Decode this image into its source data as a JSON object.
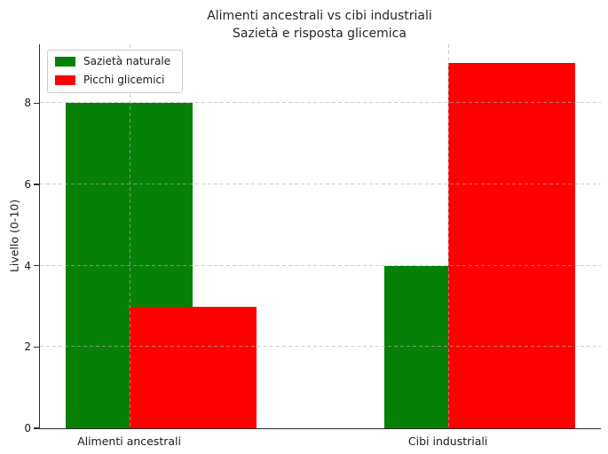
{
  "chart_data": {
    "type": "bar",
    "title": "Alimenti ancestrali vs cibi industriali",
    "subtitle": "Sazietà e risposta glicemica",
    "ylabel": "Livello (0-10)",
    "categories": [
      "Alimenti ancestrali",
      "Cibi industriali"
    ],
    "series": [
      {
        "name": "Sazietà naturale",
        "color": "#068006",
        "values": [
          8,
          4
        ]
      },
      {
        "name": "Picchi glicemici",
        "color": "#fe0000",
        "values": [
          3,
          9
        ]
      }
    ],
    "ylim": [
      0,
      9.45
    ],
    "yticks": [
      0,
      2,
      4,
      6,
      8
    ],
    "grid": "dashed",
    "grid_above_bars": true,
    "legend_position": "upper-left",
    "bar_width": 0.4,
    "series_offset": 0.2,
    "xlim": [
      -0.28,
      1.48
    ]
  }
}
